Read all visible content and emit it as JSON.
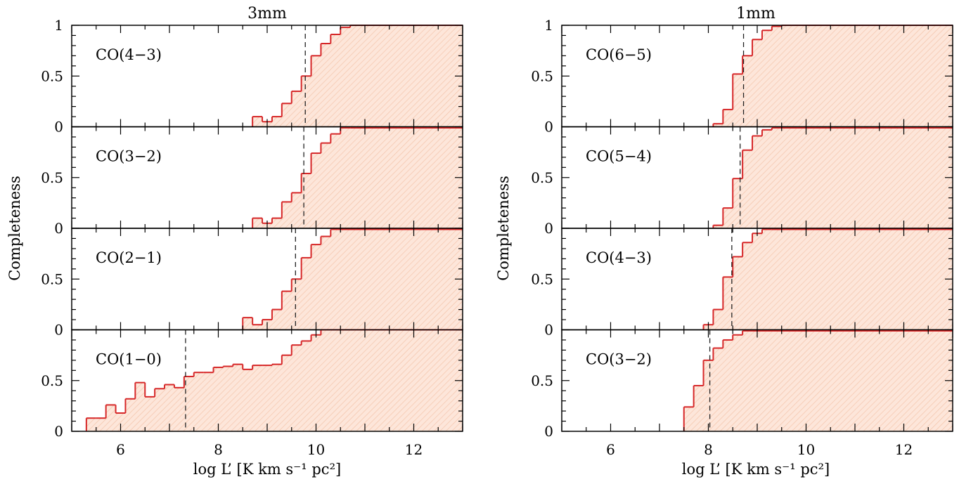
{
  "figure": {
    "ylabel": "Completeness",
    "xlabel": "log L’ [K km s⁻¹ pc²]"
  },
  "chart_data": [
    {
      "type": "step",
      "title": "3mm",
      "xlabel": "log L’ [K km s⁻¹ pc²]",
      "ylabel": "Completeness",
      "xlim": [
        5,
        13
      ],
      "ylim": [
        0,
        1
      ],
      "xticks": [
        6,
        8,
        10,
        12
      ],
      "yticks": [
        0,
        0.5,
        1
      ],
      "bin_width": 0.2,
      "fill_color": "#fbdccc",
      "line_color": "#d62728",
      "grid": false,
      "subplots": [
        {
          "label": "CO(4−3)",
          "threshold": 9.78,
          "steps": [
            [
              8.7,
              0.1
            ],
            [
              8.9,
              0.05
            ],
            [
              9.1,
              0.1
            ],
            [
              9.3,
              0.23
            ],
            [
              9.5,
              0.35
            ],
            [
              9.7,
              0.5
            ],
            [
              9.9,
              0.7
            ],
            [
              10.1,
              0.82
            ],
            [
              10.3,
              0.91
            ],
            [
              10.5,
              0.98
            ],
            [
              10.7,
              1.0
            ]
          ]
        },
        {
          "label": "CO(3−2)",
          "threshold": 9.75,
          "steps": [
            [
              8.7,
              0.1
            ],
            [
              8.9,
              0.05
            ],
            [
              9.1,
              0.1
            ],
            [
              9.3,
              0.26
            ],
            [
              9.5,
              0.35
            ],
            [
              9.7,
              0.54
            ],
            [
              9.9,
              0.74
            ],
            [
              10.1,
              0.84
            ],
            [
              10.3,
              0.93
            ],
            [
              10.5,
              0.99
            ]
          ]
        },
        {
          "label": "CO(2−1)",
          "threshold": 9.58,
          "steps": [
            [
              8.5,
              0.12
            ],
            [
              8.7,
              0.05
            ],
            [
              8.9,
              0.1
            ],
            [
              9.1,
              0.2
            ],
            [
              9.3,
              0.38
            ],
            [
              9.5,
              0.5
            ],
            [
              9.7,
              0.71
            ],
            [
              9.9,
              0.84
            ],
            [
              10.1,
              0.92
            ],
            [
              10.3,
              0.99
            ]
          ]
        },
        {
          "label": "CO(1−0)",
          "threshold": 7.33,
          "steps": [
            [
              5.3,
              0.13
            ],
            [
              5.5,
              0.13
            ],
            [
              5.7,
              0.26
            ],
            [
              5.9,
              0.18
            ],
            [
              6.1,
              0.32
            ],
            [
              6.3,
              0.48
            ],
            [
              6.5,
              0.34
            ],
            [
              6.7,
              0.42
            ],
            [
              6.9,
              0.46
            ],
            [
              7.1,
              0.43
            ],
            [
              7.3,
              0.54
            ],
            [
              7.5,
              0.58
            ],
            [
              7.7,
              0.58
            ],
            [
              7.9,
              0.63
            ],
            [
              8.1,
              0.64
            ],
            [
              8.3,
              0.66
            ],
            [
              8.5,
              0.61
            ],
            [
              8.7,
              0.65
            ],
            [
              8.9,
              0.65
            ],
            [
              9.1,
              0.66
            ],
            [
              9.3,
              0.75
            ],
            [
              9.5,
              0.85
            ],
            [
              9.7,
              0.89
            ],
            [
              9.9,
              0.95
            ],
            [
              10.1,
              1.0
            ]
          ]
        }
      ]
    },
    {
      "type": "step",
      "title": "1mm",
      "xlabel": "log L’ [K km s⁻¹ pc²]",
      "ylabel": "Completeness",
      "xlim": [
        5,
        13
      ],
      "ylim": [
        0,
        1
      ],
      "xticks": [
        6,
        8,
        10,
        12
      ],
      "yticks": [
        0,
        0.5,
        1
      ],
      "bin_width": 0.2,
      "fill_color": "#fbdccc",
      "line_color": "#d62728",
      "grid": false,
      "subplots": [
        {
          "label": "CO(6−5)",
          "threshold": 8.72,
          "steps": [
            [
              8.1,
              0.03
            ],
            [
              8.3,
              0.17
            ],
            [
              8.5,
              0.52
            ],
            [
              8.7,
              0.7
            ],
            [
              8.9,
              0.86
            ],
            [
              9.1,
              0.95
            ],
            [
              9.3,
              0.99
            ],
            [
              9.5,
              1.0
            ]
          ]
        },
        {
          "label": "CO(5−4)",
          "threshold": 8.65,
          "steps": [
            [
              8.1,
              0.03
            ],
            [
              8.3,
              0.2
            ],
            [
              8.5,
              0.49
            ],
            [
              8.7,
              0.77
            ],
            [
              8.9,
              0.91
            ],
            [
              9.1,
              0.97
            ],
            [
              9.3,
              0.99
            ]
          ]
        },
        {
          "label": "CO(4−3)",
          "threshold": 8.48,
          "steps": [
            [
              7.9,
              0.05
            ],
            [
              8.1,
              0.2
            ],
            [
              8.3,
              0.52
            ],
            [
              8.5,
              0.72
            ],
            [
              8.7,
              0.86
            ],
            [
              8.9,
              0.95
            ],
            [
              9.1,
              0.99
            ]
          ]
        },
        {
          "label": "CO(3−2)",
          "threshold": 8.03,
          "steps": [
            [
              7.5,
              0.24
            ],
            [
              7.7,
              0.45
            ],
            [
              7.9,
              0.7
            ],
            [
              8.1,
              0.82
            ],
            [
              8.3,
              0.9
            ],
            [
              8.5,
              0.95
            ],
            [
              8.7,
              0.99
            ]
          ]
        }
      ]
    }
  ]
}
